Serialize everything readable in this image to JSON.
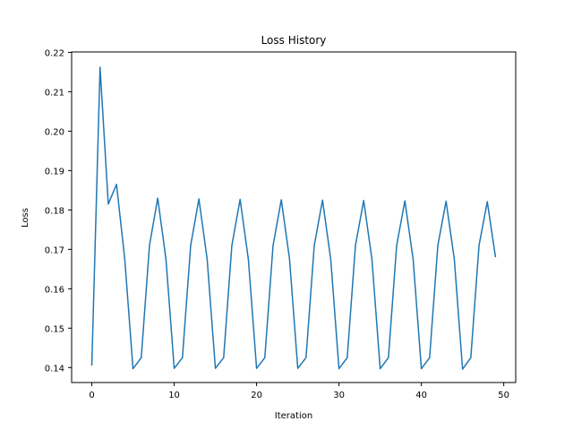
{
  "chart_data": {
    "type": "line",
    "title": "Loss History",
    "xlabel": "Iteration",
    "ylabel": "Loss",
    "xlim": [
      -2.45,
      51.45
    ],
    "ylim": [
      0.1362,
      0.2201
    ],
    "xticks": [
      0,
      10,
      20,
      30,
      40,
      50
    ],
    "yticks": [
      0.14,
      0.15,
      0.16,
      0.17,
      0.18,
      0.19,
      0.2,
      0.21,
      0.22
    ],
    "xtick_labels": [
      "0",
      "10",
      "20",
      "30",
      "40",
      "50"
    ],
    "ytick_labels": [
      "0.14",
      "0.15",
      "0.16",
      "0.17",
      "0.18",
      "0.19",
      "0.20",
      "0.21",
      "0.22"
    ],
    "grid": false,
    "series": [
      {
        "color": "#1f77b4",
        "x": [
          0,
          1,
          2,
          3,
          4,
          5,
          6,
          7,
          8,
          9,
          10,
          11,
          12,
          13,
          14,
          15,
          16,
          17,
          18,
          19,
          20,
          21,
          22,
          23,
          24,
          25,
          26,
          27,
          28,
          29,
          30,
          31,
          32,
          33,
          34,
          35,
          36,
          37,
          38,
          39,
          40,
          41,
          42,
          43,
          44,
          45,
          46,
          47,
          48,
          49
        ],
        "y": [
          0.1405,
          0.2162,
          0.1815,
          0.1865,
          0.1675,
          0.1397,
          0.1425,
          0.171,
          0.183,
          0.1675,
          0.1398,
          0.1425,
          0.171,
          0.1828,
          0.1675,
          0.1398,
          0.1425,
          0.171,
          0.1827,
          0.1675,
          0.1398,
          0.1425,
          0.171,
          0.1826,
          0.1675,
          0.1398,
          0.1425,
          0.171,
          0.1825,
          0.1675,
          0.1397,
          0.1425,
          0.171,
          0.1824,
          0.1675,
          0.1397,
          0.1425,
          0.171,
          0.1823,
          0.1675,
          0.1397,
          0.1425,
          0.171,
          0.1822,
          0.1675,
          0.1396,
          0.1425,
          0.171,
          0.1821,
          0.168
        ]
      }
    ]
  }
}
